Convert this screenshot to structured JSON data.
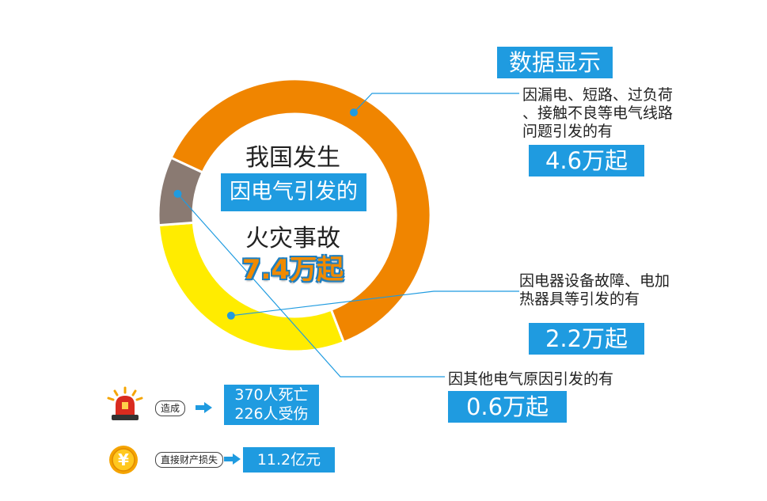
{
  "header": {
    "title": "数据显示"
  },
  "center": {
    "line1": "我国发生",
    "line2": "因电气引发的",
    "line3": "火灾事故",
    "total": "7.4万起"
  },
  "colors": {
    "orange": "#f08500",
    "yellow": "#ffec00",
    "brown": "#8a7a72",
    "blue": "#1f9be0"
  },
  "chart_data": {
    "type": "pie",
    "variant": "donut",
    "unit": "万起",
    "categories": [
      "因漏电、短路、过负荷、接触不良等电气线路问题引发的有",
      "因电器设备故障、电加热器具等引发的有",
      "因其他电气原因引发的有"
    ],
    "values": [
      4.6,
      2.2,
      0.6
    ],
    "colors": [
      "#f08500",
      "#ffec00",
      "#8a7a72"
    ]
  },
  "callouts": [
    {
      "text_lines": [
        "因漏电、短路、过负荷",
        "、接触不良等电气线路",
        "问题引发的有"
      ],
      "value": "4.6万起"
    },
    {
      "text_lines": [
        "因电器设备故障、电加",
        "热器具等引发的有"
      ],
      "value": "2.2万起"
    },
    {
      "text_lines": [
        "因其他电气原因引发的有"
      ],
      "value": "0.6万起"
    }
  ],
  "footer": {
    "casualty": {
      "icon": "alarm-siren-icon",
      "label": "造成",
      "values": [
        "370人死亡",
        "226人受伤"
      ]
    },
    "loss": {
      "icon": "yuan-coin-icon",
      "label": "直接财产损失",
      "value": "11.2亿元"
    }
  }
}
